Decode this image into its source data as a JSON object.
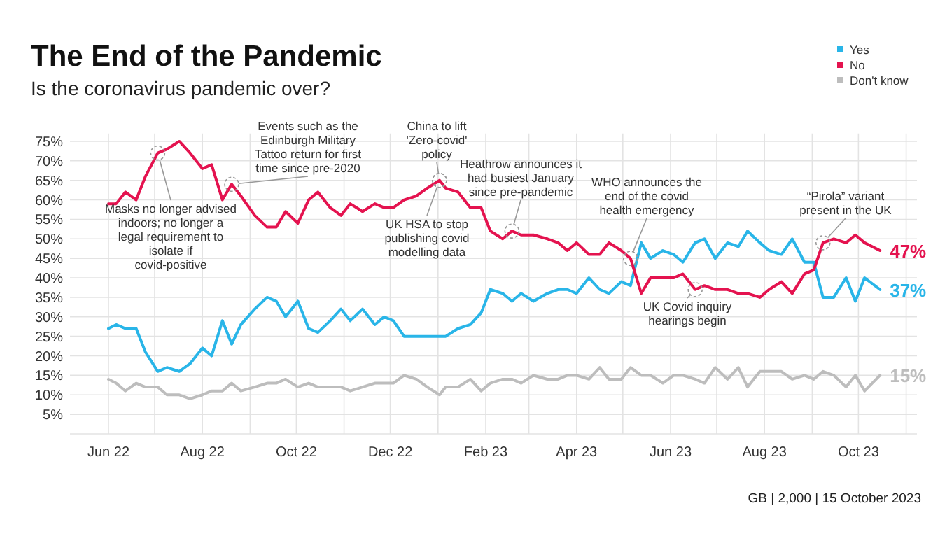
{
  "chart_data": {
    "type": "line",
    "title": "The End of the Pandemic",
    "subtitle": "Is the coronavirus pandemic over?",
    "x": [
      "2022-06-01",
      "2022-06-06",
      "2022-06-12",
      "2022-06-19",
      "2022-06-25",
      "2022-07-03",
      "2022-07-09",
      "2022-07-17",
      "2022-07-24",
      "2022-08-01",
      "2022-08-07",
      "2022-08-14",
      "2022-08-20",
      "2022-08-26",
      "2022-09-04",
      "2022-09-12",
      "2022-09-18",
      "2022-09-24",
      "2022-10-02",
      "2022-10-09",
      "2022-10-15",
      "2022-10-23",
      "2022-10-30",
      "2022-11-05",
      "2022-11-13",
      "2022-11-21",
      "2022-11-27",
      "2022-12-03",
      "2022-12-10",
      "2022-12-18",
      "2022-12-25",
      "2023-01-02",
      "2023-01-06",
      "2023-01-14",
      "2023-01-22",
      "2023-01-29",
      "2023-02-04",
      "2023-02-12",
      "2023-02-18",
      "2023-02-24",
      "2023-03-04",
      "2023-03-13",
      "2023-03-20",
      "2023-03-26",
      "2023-04-01",
      "2023-04-09",
      "2023-04-16",
      "2023-04-22",
      "2023-04-30",
      "2023-05-06",
      "2023-05-13",
      "2023-05-19",
      "2023-05-27",
      "2023-06-03",
      "2023-06-09",
      "2023-06-17",
      "2023-06-23",
      "2023-06-30",
      "2023-07-08",
      "2023-07-15",
      "2023-07-21",
      "2023-07-29",
      "2023-08-04",
      "2023-08-12",
      "2023-08-19",
      "2023-08-27",
      "2023-09-02",
      "2023-09-08",
      "2023-09-15",
      "2023-09-23",
      "2023-09-29",
      "2023-10-05",
      "2023-10-15"
    ],
    "series": [
      {
        "name": "Yes",
        "color": "#29b5e8",
        "values": [
          27,
          28,
          27,
          27,
          21,
          16,
          17,
          16,
          18,
          22,
          20,
          29,
          23,
          28,
          32,
          35,
          34,
          30,
          34,
          27,
          26,
          29,
          32,
          29,
          32,
          28,
          30,
          29,
          25,
          25,
          25,
          25,
          25,
          27,
          28,
          31,
          37,
          36,
          34,
          36,
          34,
          36,
          37,
          37,
          36,
          40,
          37,
          36,
          39,
          38,
          49,
          45,
          47,
          46,
          44,
          49,
          50,
          45,
          49,
          48,
          52,
          49,
          47,
          46,
          50,
          44,
          44,
          35,
          35,
          40,
          34,
          40,
          37
        ],
        "value_labels": [
          null,
          null,
          null,
          null,
          null,
          null,
          null,
          null,
          null,
          null,
          null,
          null,
          null,
          null,
          null,
          null,
          null,
          null,
          null,
          null,
          null,
          null,
          null,
          null,
          null,
          null,
          null,
          null,
          null,
          null,
          null,
          null,
          null,
          null,
          null,
          null,
          null,
          null,
          null,
          null,
          null,
          null,
          null,
          null,
          null,
          null,
          null,
          null,
          null,
          null,
          null,
          null,
          null,
          null,
          null,
          null,
          null,
          null,
          null,
          null,
          null,
          null,
          null,
          null,
          null,
          null,
          null,
          null,
          null,
          null,
          null,
          null,
          "37%"
        ]
      },
      {
        "name": "No",
        "color": "#e4134f",
        "values": [
          59,
          59,
          62,
          60,
          66,
          72,
          73,
          75,
          72,
          68,
          69,
          60,
          64,
          61,
          56,
          53,
          53,
          57,
          54,
          60,
          62,
          58,
          56,
          59,
          57,
          59,
          58,
          58,
          60,
          61,
          63,
          65,
          63,
          62,
          58,
          58,
          52,
          50,
          52,
          51,
          51,
          50,
          49,
          47,
          49,
          46,
          46,
          49,
          47,
          45,
          36,
          40,
          40,
          40,
          41,
          37,
          38,
          37,
          37,
          36,
          36,
          35,
          37,
          39,
          36,
          41,
          42,
          49,
          50,
          49,
          51,
          49,
          47
        ],
        "value_labels": [
          null,
          null,
          null,
          null,
          null,
          null,
          null,
          null,
          null,
          null,
          null,
          null,
          null,
          null,
          null,
          null,
          null,
          null,
          null,
          null,
          null,
          null,
          null,
          null,
          null,
          null,
          null,
          null,
          null,
          null,
          null,
          null,
          null,
          null,
          null,
          null,
          null,
          null,
          null,
          null,
          null,
          null,
          null,
          null,
          null,
          null,
          null,
          null,
          null,
          null,
          null,
          null,
          null,
          null,
          null,
          null,
          null,
          null,
          null,
          null,
          null,
          null,
          null,
          null,
          null,
          null,
          null,
          null,
          null,
          null,
          null,
          null,
          "47%"
        ]
      },
      {
        "name": "Don't know",
        "color": "#bdbdbd",
        "values": [
          14,
          13,
          11,
          13,
          12,
          12,
          10,
          10,
          9,
          10,
          11,
          11,
          13,
          11,
          12,
          13,
          13,
          14,
          12,
          13,
          12,
          12,
          12,
          11,
          12,
          13,
          13,
          13,
          15,
          14,
          12,
          10,
          12,
          12,
          14,
          11,
          13,
          14,
          14,
          13,
          15,
          14,
          14,
          15,
          15,
          14,
          17,
          14,
          14,
          17,
          15,
          15,
          13,
          15,
          15,
          14,
          13,
          17,
          14,
          17,
          12,
          16,
          16,
          16,
          14,
          15,
          14,
          16,
          15,
          12,
          15,
          11,
          15
        ],
        "value_labels": [
          null,
          null,
          null,
          null,
          null,
          null,
          null,
          null,
          null,
          null,
          null,
          null,
          null,
          null,
          null,
          null,
          null,
          null,
          null,
          null,
          null,
          null,
          null,
          null,
          null,
          null,
          null,
          null,
          null,
          null,
          null,
          null,
          null,
          null,
          null,
          null,
          null,
          null,
          null,
          null,
          null,
          null,
          null,
          null,
          null,
          null,
          null,
          null,
          null,
          null,
          null,
          null,
          null,
          null,
          null,
          null,
          null,
          null,
          null,
          null,
          null,
          null,
          null,
          null,
          null,
          null,
          null,
          null,
          null,
          null,
          null,
          null,
          "15%"
        ]
      }
    ],
    "xlim": [
      "2022-05-07",
      "2023-11-08"
    ],
    "xticks": [
      {
        "value": "2022-06-01",
        "label": "Jun 22"
      },
      {
        "value": "2022-07-01",
        "label": null
      },
      {
        "value": "2022-08-01",
        "label": "Aug 22"
      },
      {
        "value": "2022-09-01",
        "label": null
      },
      {
        "value": "2022-10-01",
        "label": "Oct 22"
      },
      {
        "value": "2022-11-01",
        "label": null
      },
      {
        "value": "2022-12-01",
        "label": "Dec 22"
      },
      {
        "value": "2023-01-01",
        "label": null
      },
      {
        "value": "2023-02-01",
        "label": "Feb 23"
      },
      {
        "value": "2023-03-01",
        "label": null
      },
      {
        "value": "2023-04-01",
        "label": "Apr 23"
      },
      {
        "value": "2023-05-01",
        "label": null
      },
      {
        "value": "2023-06-01",
        "label": "Jun 23"
      },
      {
        "value": "2023-07-01",
        "label": null
      },
      {
        "value": "2023-08-01",
        "label": "Aug 23"
      },
      {
        "value": "2023-09-01",
        "label": null
      },
      {
        "value": "2023-10-01",
        "label": "Oct 23"
      },
      {
        "value": "2023-11-01",
        "label": null
      }
    ],
    "ylim": [
      0,
      77
    ],
    "yticks": [
      {
        "value": 0,
        "label": null
      },
      {
        "value": 5,
        "label": "5%"
      },
      {
        "value": 10,
        "label": "10%"
      },
      {
        "value": 15,
        "label": "15%"
      },
      {
        "value": 20,
        "label": "20%"
      },
      {
        "value": 25,
        "label": "25%"
      },
      {
        "value": 30,
        "label": "30%"
      },
      {
        "value": 35,
        "label": "35%"
      },
      {
        "value": 40,
        "label": "40%"
      },
      {
        "value": 45,
        "label": "45%"
      },
      {
        "value": 50,
        "label": "50%"
      },
      {
        "value": 55,
        "label": "55%"
      },
      {
        "value": 60,
        "label": "60%"
      },
      {
        "value": 65,
        "label": "65%"
      },
      {
        "value": 70,
        "label": "70%"
      },
      {
        "value": 75,
        "label": "75%"
      }
    ],
    "grid": true,
    "legend": "top right",
    "marker": "none",
    "line_style": "solid",
    "annotations": [
      {
        "text": "Masks no longer advised indoors; no longer a legal requirement to isolate if covid-positive",
        "x": "2022-07-03",
        "y": 72
      },
      {
        "text": "Events such as the Edinburgh Military Tattoo return for first time since pre-2020",
        "x": "2022-08-20",
        "y": 64
      },
      {
        "text": "China to lift 'Zero-covid' policy",
        "x": "2023-01-02",
        "y": 65
      },
      {
        "text": "UK HSA to stop publishing covid modelling data",
        "x": "2023-01-02",
        "y": 65
      },
      {
        "text": "Heathrow announces it had busiest January since pre-pandemic",
        "x": "2023-02-18",
        "y": 52
      },
      {
        "text": "WHO announces the end of the covid health emergency",
        "x": "2023-05-06",
        "y": 45
      },
      {
        "text": "UK Covid inquiry hearings begin",
        "x": "2023-06-17",
        "y": 37
      },
      {
        "text": "“Pirola” variant present in the UK",
        "x": "2023-09-08",
        "y": 49
      },
      "GB | 2,000 | 15 October 2023"
    ]
  }
}
